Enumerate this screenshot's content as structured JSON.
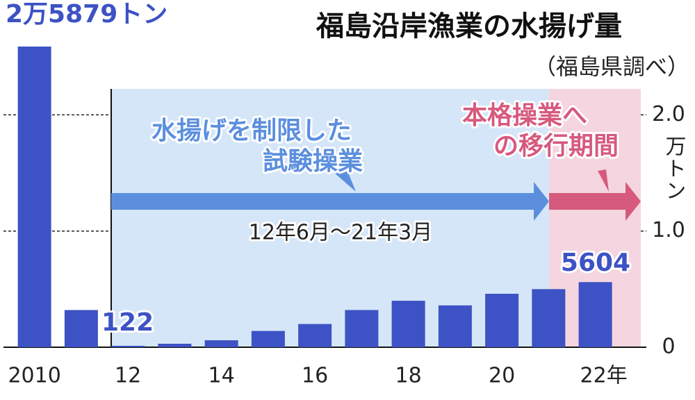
{
  "chart_data": {
    "type": "bar",
    "title": "福島沿岸漁業の水揚げ量",
    "subtitle": "（福島県調べ）",
    "y_axis_label": "万トン",
    "categories": [
      "2010",
      null,
      "12",
      null,
      "14",
      null,
      "16",
      null,
      "18",
      null,
      "20",
      null,
      "22年"
    ],
    "values": [
      2.5879,
      0.32,
      0.0122,
      0.03,
      0.06,
      0.14,
      0.2,
      0.32,
      0.4,
      0.36,
      0.46,
      0.5,
      0.5604
    ],
    "value_labels": [
      "2万5879トン",
      null,
      "122",
      null,
      null,
      null,
      null,
      null,
      null,
      null,
      null,
      null,
      "5604"
    ],
    "color": "#3d52c4",
    "ylim": [
      0,
      2.63
    ],
    "yticks": [
      0,
      {
        "value": 1,
        "label": "1.0"
      },
      {
        "value": 2,
        "label": "2.0"
      }
    ],
    "grid": true,
    "annotations": {
      "trial_period": "水揚げを制限した試験操業",
      "trial_dates": "12年6月～21年3月",
      "transition_period": "本格操業への移行期間"
    }
  }
}
